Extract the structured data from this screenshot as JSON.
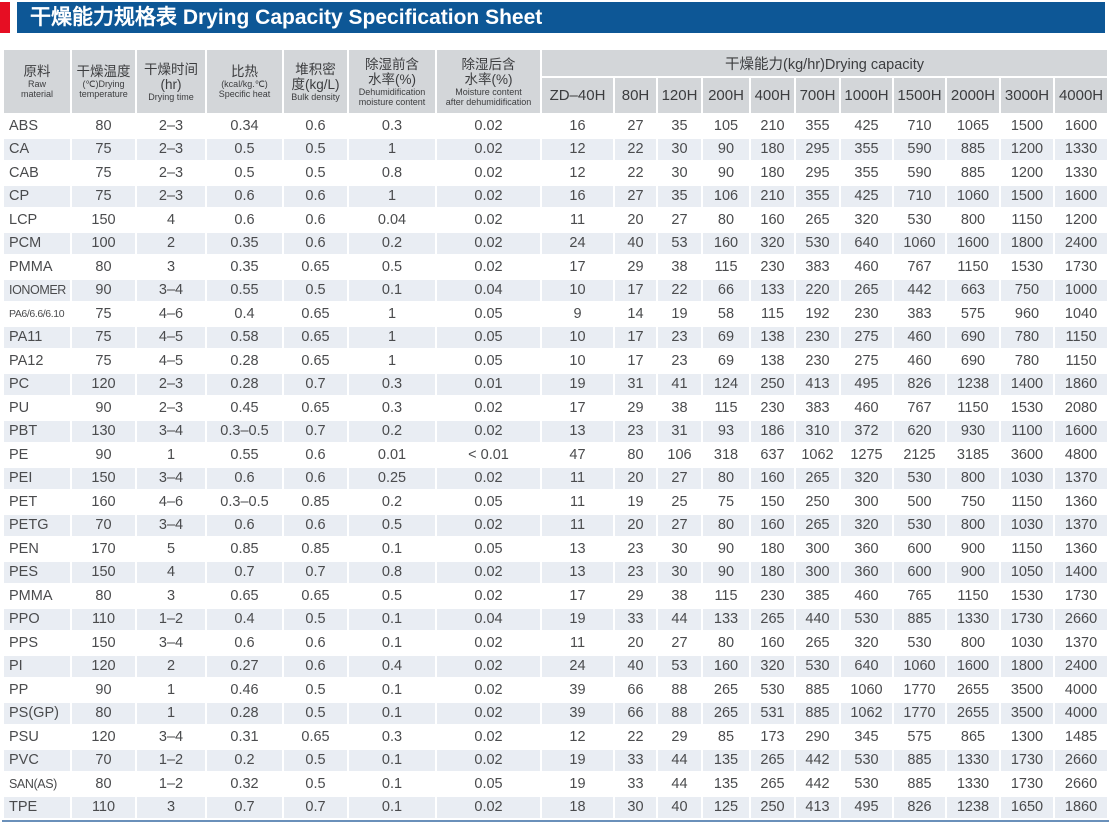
{
  "header": {
    "title": "干燥能力规格表 Drying Capacity Specification Sheet"
  },
  "colors": {
    "banner_blue": "#0d5796",
    "accent_red": "#e60e23",
    "header_grey": "#d3d6d9",
    "row_shade": "#e9edf3",
    "text_grey": "#4a4b4d"
  },
  "table": {
    "column_headers": [
      {
        "key": "raw-material",
        "zh_lines": [
          "原料"
        ],
        "en_lines": [
          "Raw",
          "material"
        ]
      },
      {
        "key": "drying-temperature",
        "zh_lines": [
          "干燥温度"
        ],
        "en_lines": [
          "(℃)Drying",
          "temperature"
        ]
      },
      {
        "key": "drying-time",
        "zh_lines": [
          "干燥时间",
          "(hr)"
        ],
        "en_lines": [
          "Drying time"
        ]
      },
      {
        "key": "specific-heat",
        "zh_lines": [
          "比热"
        ],
        "en_lines": [
          "(kcal/kg.℃)",
          "Specific heat"
        ]
      },
      {
        "key": "bulk-density",
        "zh_lines": [
          "堆积密",
          "度(kg/L)"
        ],
        "en_lines": [
          "Bulk density"
        ]
      },
      {
        "key": "moisture-before",
        "zh_lines": [
          "除湿前含",
          "水率(%)"
        ],
        "en_lines": [
          "Dehumidification",
          "moisture content"
        ]
      },
      {
        "key": "moisture-after",
        "zh_lines": [
          "除湿后含",
          "水率(%)"
        ],
        "en_lines": [
          "Moisture content",
          "after dehumidification"
        ]
      }
    ],
    "capacity_header": "干燥能力(kg/hr)Drying capacity",
    "models": [
      "ZD–40H",
      "80H",
      "120H",
      "200H",
      "400H",
      "700H",
      "1000H",
      "1500H",
      "2000H",
      "3000H",
      "4000H"
    ],
    "rows": [
      {
        "material": "ABS",
        "specs": [
          "80",
          "2–3",
          "0.34",
          "0.6",
          "0.3",
          "0.02"
        ],
        "capacities": [
          "16",
          "27",
          "35",
          "105",
          "210",
          "355",
          "425",
          "710",
          "1065",
          "1500",
          "1600"
        ]
      },
      {
        "material": "CA",
        "specs": [
          "75",
          "2–3",
          "0.5",
          "0.5",
          "1",
          "0.02"
        ],
        "capacities": [
          "12",
          "22",
          "30",
          "90",
          "180",
          "295",
          "355",
          "590",
          "885",
          "1200",
          "1330"
        ]
      },
      {
        "material": "CAB",
        "specs": [
          "75",
          "2–3",
          "0.5",
          "0.5",
          "0.8",
          "0.02"
        ],
        "capacities": [
          "12",
          "22",
          "30",
          "90",
          "180",
          "295",
          "355",
          "590",
          "885",
          "1200",
          "1330"
        ]
      },
      {
        "material": "CP",
        "specs": [
          "75",
          "2–3",
          "0.6",
          "0.6",
          "1",
          "0.02"
        ],
        "capacities": [
          "16",
          "27",
          "35",
          "106",
          "210",
          "355",
          "425",
          "710",
          "1060",
          "1500",
          "1600"
        ]
      },
      {
        "material": "LCP",
        "specs": [
          "150",
          "4",
          "0.6",
          "0.6",
          "0.04",
          "0.02"
        ],
        "capacities": [
          "11",
          "20",
          "27",
          "80",
          "160",
          "265",
          "320",
          "530",
          "800",
          "1150",
          "1200"
        ]
      },
      {
        "material": "PCM",
        "specs": [
          "100",
          "2",
          "0.35",
          "0.6",
          "0.2",
          "0.02"
        ],
        "capacities": [
          "24",
          "40",
          "53",
          "160",
          "320",
          "530",
          "640",
          "1060",
          "1600",
          "1800",
          "2400"
        ]
      },
      {
        "material": "PMMA",
        "specs": [
          "80",
          "3",
          "0.35",
          "0.65",
          "0.5",
          "0.02"
        ],
        "capacities": [
          "17",
          "29",
          "38",
          "115",
          "230",
          "383",
          "460",
          "767",
          "1150",
          "1530",
          "1730"
        ]
      },
      {
        "material": "IONOMER",
        "specs": [
          "90",
          "3–4",
          "0.55",
          "0.5",
          "0.1",
          "0.04"
        ],
        "capacities": [
          "10",
          "17",
          "22",
          "66",
          "133",
          "220",
          "265",
          "442",
          "663",
          "750",
          "1000"
        ]
      },
      {
        "material": "PA6/6.6/6.10",
        "specs": [
          "75",
          "4–6",
          "0.4",
          "0.65",
          "1",
          "0.05"
        ],
        "capacities": [
          "9",
          "14",
          "19",
          "58",
          "115",
          "192",
          "230",
          "383",
          "575",
          "960",
          "1040"
        ]
      },
      {
        "material": "PA11",
        "specs": [
          "75",
          "4–5",
          "0.58",
          "0.65",
          "1",
          "0.05"
        ],
        "capacities": [
          "10",
          "17",
          "23",
          "69",
          "138",
          "230",
          "275",
          "460",
          "690",
          "780",
          "1150"
        ]
      },
      {
        "material": "PA12",
        "specs": [
          "75",
          "4–5",
          "0.28",
          "0.65",
          "1",
          "0.05"
        ],
        "capacities": [
          "10",
          "17",
          "23",
          "69",
          "138",
          "230",
          "275",
          "460",
          "690",
          "780",
          "1150"
        ]
      },
      {
        "material": "PC",
        "specs": [
          "120",
          "2–3",
          "0.28",
          "0.7",
          "0.3",
          "0.01"
        ],
        "capacities": [
          "19",
          "31",
          "41",
          "124",
          "250",
          "413",
          "495",
          "826",
          "1238",
          "1400",
          "1860"
        ]
      },
      {
        "material": "PU",
        "specs": [
          "90",
          "2–3",
          "0.45",
          "0.65",
          "0.3",
          "0.02"
        ],
        "capacities": [
          "17",
          "29",
          "38",
          "115",
          "230",
          "383",
          "460",
          "767",
          "1150",
          "1530",
          "2080"
        ]
      },
      {
        "material": "PBT",
        "specs": [
          "130",
          "3–4",
          "0.3–0.5",
          "0.7",
          "0.2",
          "0.02"
        ],
        "capacities": [
          "13",
          "23",
          "31",
          "93",
          "186",
          "310",
          "372",
          "620",
          "930",
          "1100",
          "1600"
        ]
      },
      {
        "material": "PE",
        "specs": [
          "90",
          "1",
          "0.55",
          "0.6",
          "0.01",
          "< 0.01"
        ],
        "capacities": [
          "47",
          "80",
          "106",
          "318",
          "637",
          "1062",
          "1275",
          "2125",
          "3185",
          "3600",
          "4800"
        ]
      },
      {
        "material": "PEI",
        "specs": [
          "150",
          "3–4",
          "0.6",
          "0.6",
          "0.25",
          "0.02"
        ],
        "capacities": [
          "11",
          "20",
          "27",
          "80",
          "160",
          "265",
          "320",
          "530",
          "800",
          "1030",
          "1370"
        ]
      },
      {
        "material": "PET",
        "specs": [
          "160",
          "4–6",
          "0.3–0.5",
          "0.85",
          "0.2",
          "0.05"
        ],
        "capacities": [
          "11",
          "19",
          "25",
          "75",
          "150",
          "250",
          "300",
          "500",
          "750",
          "1150",
          "1360"
        ]
      },
      {
        "material": "PETG",
        "specs": [
          "70",
          "3–4",
          "0.6",
          "0.6",
          "0.5",
          "0.02"
        ],
        "capacities": [
          "11",
          "20",
          "27",
          "80",
          "160",
          "265",
          "320",
          "530",
          "800",
          "1030",
          "1370"
        ]
      },
      {
        "material": "PEN",
        "specs": [
          "170",
          "5",
          "0.85",
          "0.85",
          "0.1",
          "0.05"
        ],
        "capacities": [
          "13",
          "23",
          "30",
          "90",
          "180",
          "300",
          "360",
          "600",
          "900",
          "1150",
          "1360"
        ]
      },
      {
        "material": "PES",
        "specs": [
          "150",
          "4",
          "0.7",
          "0.7",
          "0.8",
          "0.02"
        ],
        "capacities": [
          "13",
          "23",
          "30",
          "90",
          "180",
          "300",
          "360",
          "600",
          "900",
          "1050",
          "1400"
        ]
      },
      {
        "material": "PMMA",
        "specs": [
          "80",
          "3",
          "0.65",
          "0.65",
          "0.5",
          "0.02"
        ],
        "capacities": [
          "17",
          "29",
          "38",
          "115",
          "230",
          "385",
          "460",
          "765",
          "1150",
          "1530",
          "1730"
        ]
      },
      {
        "material": "PPO",
        "specs": [
          "110",
          "1–2",
          "0.4",
          "0.5",
          "0.1",
          "0.04"
        ],
        "capacities": [
          "19",
          "33",
          "44",
          "133",
          "265",
          "440",
          "530",
          "885",
          "1330",
          "1730",
          "2660"
        ]
      },
      {
        "material": "PPS",
        "specs": [
          "150",
          "3–4",
          "0.6",
          "0.6",
          "0.1",
          "0.02"
        ],
        "capacities": [
          "11",
          "20",
          "27",
          "80",
          "160",
          "265",
          "320",
          "530",
          "800",
          "1030",
          "1370"
        ]
      },
      {
        "material": "PI",
        "specs": [
          "120",
          "2",
          "0.27",
          "0.6",
          "0.4",
          "0.02"
        ],
        "capacities": [
          "24",
          "40",
          "53",
          "160",
          "320",
          "530",
          "640",
          "1060",
          "1600",
          "1800",
          "2400"
        ]
      },
      {
        "material": "PP",
        "specs": [
          "90",
          "1",
          "0.46",
          "0.5",
          "0.1",
          "0.02"
        ],
        "capacities": [
          "39",
          "66",
          "88",
          "265",
          "530",
          "885",
          "1060",
          "1770",
          "2655",
          "3500",
          "4000"
        ]
      },
      {
        "material": "PS(GP)",
        "specs": [
          "80",
          "1",
          "0.28",
          "0.5",
          "0.1",
          "0.02"
        ],
        "capacities": [
          "39",
          "66",
          "88",
          "265",
          "531",
          "885",
          "1062",
          "1770",
          "2655",
          "3500",
          "4000"
        ]
      },
      {
        "material": "PSU",
        "specs": [
          "120",
          "3–4",
          "0.31",
          "0.65",
          "0.3",
          "0.02"
        ],
        "capacities": [
          "12",
          "22",
          "29",
          "85",
          "173",
          "290",
          "345",
          "575",
          "865",
          "1300",
          "1485"
        ]
      },
      {
        "material": "PVC",
        "specs": [
          "70",
          "1–2",
          "0.2",
          "0.5",
          "0.1",
          "0.02"
        ],
        "capacities": [
          "19",
          "33",
          "44",
          "135",
          "265",
          "442",
          "530",
          "885",
          "1330",
          "1730",
          "2660"
        ]
      },
      {
        "material": "SAN(AS)",
        "specs": [
          "80",
          "1–2",
          "0.32",
          "0.5",
          "0.1",
          "0.05"
        ],
        "capacities": [
          "19",
          "33",
          "44",
          "135",
          "265",
          "442",
          "530",
          "885",
          "1330",
          "1730",
          "2660"
        ]
      },
      {
        "material": "TPE",
        "specs": [
          "110",
          "3",
          "0.7",
          "0.7",
          "0.1",
          "0.02"
        ],
        "capacities": [
          "18",
          "30",
          "40",
          "125",
          "250",
          "413",
          "495",
          "826",
          "1238",
          "1650",
          "1860"
        ]
      }
    ]
  }
}
